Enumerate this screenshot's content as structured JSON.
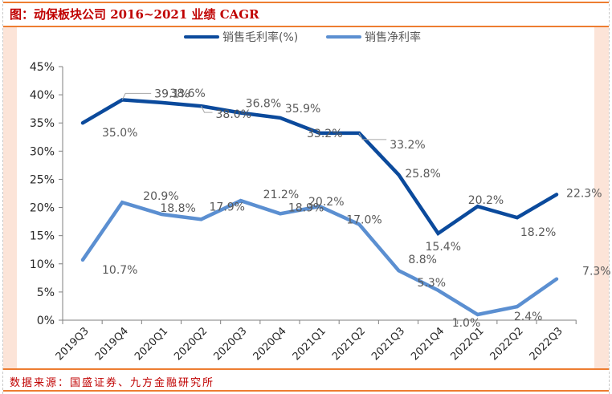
{
  "header": {
    "title": "图：动保板块公司 2016~2021 业绩 CAGR"
  },
  "footer": {
    "source": "数据来源：国盛证券、九方金融研究所"
  },
  "colors": {
    "gross_margin": "#0b4a9c",
    "net_margin": "#5b8fd1",
    "title_red": "#c00000",
    "rule_orange": "#ed7d31",
    "side_band": "#fce4d8",
    "axis": "#7f7f7f",
    "label_text": "#595959"
  },
  "chart_data": {
    "type": "line",
    "title": "图：动保板块公司 2016~2021 业绩 CAGR",
    "xlabel": "",
    "ylabel": "",
    "ylim": [
      0,
      45
    ],
    "y_ticks": [
      0,
      5,
      10,
      15,
      20,
      25,
      30,
      35,
      40,
      45
    ],
    "y_tick_labels": [
      "0%",
      "5%",
      "10%",
      "15%",
      "20%",
      "25%",
      "30%",
      "35%",
      "40%",
      "45%"
    ],
    "grid": false,
    "legend_position": "top",
    "categories": [
      "2019Q3",
      "2019Q4",
      "2020Q1",
      "2020Q2",
      "2020Q3",
      "2020Q4",
      "2021Q1",
      "2021Q2",
      "2021Q3",
      "2021Q4",
      "2022Q1",
      "2022Q2",
      "2022Q3"
    ],
    "series": [
      {
        "name": "销售毛利率(%)",
        "color": "#0b4a9c",
        "values": [
          35.0,
          39.1,
          38.6,
          38.0,
          36.8,
          35.9,
          33.2,
          33.2,
          25.8,
          15.4,
          20.2,
          18.2,
          22.3
        ],
        "labels": [
          "35.0%",
          "39.1%",
          "38.6%",
          "38.0%",
          "36.8%",
          "35.9%",
          "33.2%",
          "33.2%",
          "25.8%",
          "15.4%",
          "20.2%",
          "18.2%",
          "22.3%"
        ]
      },
      {
        "name": "销售净利率",
        "color": "#5b8fd1",
        "values": [
          10.7,
          20.9,
          18.8,
          17.9,
          21.2,
          18.9,
          20.2,
          17.0,
          8.8,
          5.3,
          1.0,
          2.4,
          7.3
        ],
        "labels": [
          "10.7%",
          "20.9%",
          "18.8%",
          "17.9%",
          "21.2%",
          "18.9%",
          "20.2%",
          "17.0%",
          "8.8%",
          "5.3%",
          "1.0%",
          "2.4%",
          "7.3%"
        ]
      }
    ]
  }
}
